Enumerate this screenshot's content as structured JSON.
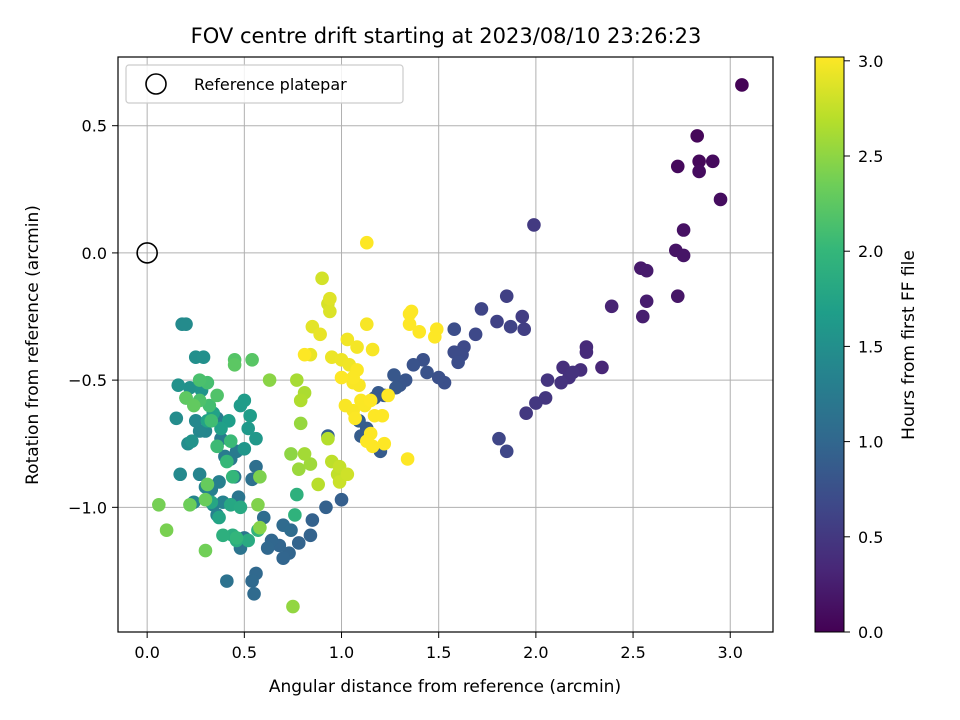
{
  "chart_data": {
    "type": "scatter",
    "title": "FOV centre drift starting at 2023/08/10 23:26:23",
    "xlabel": "Angular distance from reference (arcmin)",
    "ylabel": "Rotation from reference (arcmin)",
    "xlim": [
      -0.15,
      3.22
    ],
    "ylim": [
      -1.49,
      0.77
    ],
    "xticks": [
      0.0,
      0.5,
      1.0,
      1.5,
      2.0,
      2.5,
      3.0
    ],
    "xtick_labels": [
      "0.0",
      "0.5",
      "1.0",
      "1.5",
      "2.0",
      "2.5",
      "3.0"
    ],
    "yticks": [
      0.5,
      0.0,
      -0.5,
      -1.0
    ],
    "ytick_labels": [
      "0.5",
      "0.0",
      "−0.5",
      "−1.0"
    ],
    "grid": true,
    "legend": {
      "location": "upper-left",
      "entries": [
        "Reference platepar"
      ]
    },
    "reference_point": {
      "x": 0.0,
      "y": 0.0,
      "marker": "open-circle"
    },
    "colorbar": {
      "label": "Hours from first FF file",
      "range": [
        0.0,
        3.02
      ],
      "ticks": [
        0.0,
        0.5,
        1.0,
        1.5,
        2.0,
        2.5,
        3.0
      ],
      "tick_labels": [
        "0.0",
        "0.5",
        "1.0",
        "1.5",
        "2.0",
        "2.5",
        "3.0"
      ],
      "colormap": "viridis"
    },
    "colormap_stops": [
      "#440154",
      "#482878",
      "#3e4989",
      "#31688e",
      "#26828e",
      "#1f9e89",
      "#35b779",
      "#6ece58",
      "#b5de2b",
      "#fde725"
    ],
    "points": [
      [
        3.06,
        0.66,
        0.02
      ],
      [
        2.83,
        0.46,
        0.05
      ],
      [
        2.73,
        0.34,
        0.07
      ],
      [
        2.84,
        0.36,
        0.06
      ],
      [
        2.91,
        0.36,
        0.08
      ],
      [
        2.84,
        0.32,
        0.09
      ],
      [
        2.95,
        0.21,
        0.1
      ],
      [
        2.76,
        0.09,
        0.14
      ],
      [
        2.72,
        0.01,
        0.16
      ],
      [
        2.76,
        -0.01,
        0.17
      ],
      [
        2.73,
        -0.17,
        0.18
      ],
      [
        2.54,
        -0.06,
        0.21
      ],
      [
        2.57,
        -0.07,
        0.22
      ],
      [
        2.57,
        -0.19,
        0.24
      ],
      [
        2.55,
        -0.25,
        0.25
      ],
      [
        2.39,
        -0.21,
        0.3
      ],
      [
        2.34,
        -0.45,
        0.33
      ],
      [
        2.26,
        -0.37,
        0.36
      ],
      [
        2.26,
        -0.39,
        0.37
      ],
      [
        2.23,
        -0.46,
        0.4
      ],
      [
        2.14,
        -0.45,
        0.41
      ],
      [
        2.17,
        -0.49,
        0.43
      ],
      [
        2.19,
        -0.47,
        0.44
      ],
      [
        2.13,
        -0.51,
        0.45
      ],
      [
        2.06,
        -0.5,
        0.47
      ],
      [
        2.05,
        -0.57,
        0.48
      ],
      [
        2.0,
        -0.59,
        0.49
      ],
      [
        1.95,
        -0.63,
        0.5
      ],
      [
        1.99,
        0.11,
        0.52
      ],
      [
        1.93,
        -0.25,
        0.55
      ],
      [
        1.94,
        -0.3,
        0.56
      ],
      [
        1.85,
        -0.17,
        0.58
      ],
      [
        1.8,
        -0.27,
        0.6
      ],
      [
        1.87,
        -0.29,
        0.61
      ],
      [
        1.72,
        -0.22,
        0.63
      ],
      [
        1.81,
        -0.73,
        0.64
      ],
      [
        1.85,
        -0.78,
        0.65
      ],
      [
        1.69,
        -0.32,
        0.67
      ],
      [
        1.63,
        -0.37,
        0.68
      ],
      [
        1.62,
        -0.4,
        0.69
      ],
      [
        1.58,
        -0.39,
        0.7
      ],
      [
        1.6,
        -0.43,
        0.71
      ],
      [
        1.58,
        -0.3,
        0.72
      ],
      [
        1.53,
        -0.51,
        0.74
      ],
      [
        1.5,
        -0.49,
        0.75
      ],
      [
        1.42,
        -0.42,
        0.76
      ],
      [
        1.44,
        -0.47,
        0.77
      ],
      [
        1.37,
        -0.44,
        0.78
      ],
      [
        1.33,
        -0.5,
        0.8
      ],
      [
        1.3,
        -0.52,
        0.81
      ],
      [
        1.27,
        -0.48,
        0.82
      ],
      [
        1.28,
        -0.53,
        0.83
      ],
      [
        1.22,
        -0.56,
        0.84
      ],
      [
        1.19,
        -0.55,
        0.85
      ],
      [
        1.17,
        -0.57,
        0.86
      ],
      [
        1.2,
        -0.78,
        0.87
      ],
      [
        1.13,
        -0.69,
        0.88
      ],
      [
        1.1,
        -0.72,
        0.89
      ],
      [
        1.09,
        -0.66,
        0.9
      ],
      [
        1.0,
        -0.97,
        0.91
      ],
      [
        0.93,
        -0.72,
        0.92
      ],
      [
        0.92,
        -1.0,
        0.93
      ],
      [
        0.85,
        -1.05,
        0.94
      ],
      [
        0.84,
        -1.11,
        0.95
      ],
      [
        0.78,
        -1.14,
        0.96
      ],
      [
        0.73,
        -1.18,
        0.97
      ],
      [
        0.7,
        -1.2,
        0.98
      ],
      [
        0.68,
        -1.15,
        0.99
      ],
      [
        0.64,
        -1.13,
        1.0
      ],
      [
        0.62,
        -1.16,
        1.01
      ],
      [
        0.56,
        -1.26,
        1.02
      ],
      [
        0.54,
        -1.29,
        1.03
      ],
      [
        0.55,
        -1.34,
        1.04
      ],
      [
        0.7,
        -1.07,
        1.05
      ],
      [
        0.74,
        -1.09,
        1.06
      ],
      [
        0.6,
        -1.04,
        1.07
      ],
      [
        0.56,
        -0.84,
        1.1
      ],
      [
        0.54,
        -0.89,
        1.12
      ],
      [
        0.41,
        -1.29,
        1.14
      ],
      [
        0.48,
        -1.16,
        1.16
      ],
      [
        0.5,
        -1.12,
        1.17
      ],
      [
        0.47,
        -0.96,
        1.18
      ],
      [
        0.45,
        -0.88,
        1.2
      ],
      [
        0.43,
        -0.81,
        1.22
      ],
      [
        0.46,
        -0.78,
        1.24
      ],
      [
        0.4,
        -0.8,
        1.25
      ],
      [
        0.38,
        -0.73,
        1.27
      ],
      [
        0.36,
        -0.65,
        1.28
      ],
      [
        0.37,
        -0.9,
        1.3
      ],
      [
        0.33,
        -0.93,
        1.31
      ],
      [
        0.34,
        -0.99,
        1.32
      ],
      [
        0.36,
        -1.03,
        1.33
      ],
      [
        0.39,
        -0.98,
        1.34
      ],
      [
        0.3,
        -0.92,
        1.35
      ],
      [
        0.27,
        -0.87,
        1.37
      ],
      [
        0.24,
        -0.98,
        1.38
      ],
      [
        0.3,
        -0.7,
        1.39
      ],
      [
        0.27,
        -0.7,
        1.4
      ],
      [
        0.25,
        -0.66,
        1.41
      ],
      [
        0.17,
        -0.87,
        1.43
      ],
      [
        0.18,
        -0.28,
        1.44
      ],
      [
        0.2,
        -0.28,
        1.45
      ],
      [
        0.15,
        -0.65,
        1.46
      ],
      [
        0.21,
        -0.75,
        1.47
      ],
      [
        0.2,
        -0.57,
        1.48
      ],
      [
        0.25,
        -0.41,
        1.5
      ],
      [
        0.29,
        -0.41,
        1.51
      ],
      [
        0.22,
        -0.53,
        1.52
      ],
      [
        0.16,
        -0.52,
        1.53
      ],
      [
        0.23,
        -0.74,
        1.55
      ],
      [
        0.28,
        -0.54,
        1.56
      ],
      [
        0.5,
        -0.77,
        1.58
      ],
      [
        0.56,
        -0.73,
        1.6
      ],
      [
        0.52,
        -0.69,
        1.62
      ],
      [
        0.48,
        -0.6,
        1.64
      ],
      [
        0.5,
        -0.58,
        1.65
      ],
      [
        0.53,
        -0.64,
        1.66
      ],
      [
        0.42,
        -0.66,
        1.68
      ],
      [
        0.38,
        -0.69,
        1.7
      ],
      [
        0.34,
        -0.63,
        1.72
      ],
      [
        0.31,
        -0.66,
        1.74
      ],
      [
        0.37,
        -1.04,
        1.76
      ],
      [
        0.33,
        -0.98,
        1.78
      ],
      [
        0.43,
        -0.99,
        1.8
      ],
      [
        0.48,
        -1.0,
        1.82
      ],
      [
        0.52,
        -1.13,
        1.84
      ],
      [
        0.46,
        -1.13,
        1.86
      ],
      [
        0.44,
        -1.11,
        1.88
      ],
      [
        0.39,
        -1.11,
        1.9
      ],
      [
        0.77,
        -0.95,
        1.92
      ],
      [
        0.76,
        -1.03,
        1.94
      ],
      [
        0.57,
        -1.09,
        1.96
      ],
      [
        0.46,
        -1.12,
        1.98
      ],
      [
        0.44,
        -0.88,
        2.0
      ],
      [
        0.41,
        -0.82,
        2.02
      ],
      [
        0.43,
        -0.74,
        2.04
      ],
      [
        0.36,
        -0.76,
        2.06
      ],
      [
        0.33,
        -0.66,
        2.08
      ],
      [
        0.32,
        -0.6,
        2.1
      ],
      [
        0.31,
        -0.51,
        2.12
      ],
      [
        0.27,
        -0.5,
        2.14
      ],
      [
        0.27,
        -0.58,
        2.16
      ],
      [
        0.36,
        -0.56,
        2.18
      ],
      [
        0.45,
        -0.42,
        2.2
      ],
      [
        0.54,
        -0.42,
        2.22
      ],
      [
        0.45,
        -0.44,
        2.24
      ],
      [
        0.2,
        -0.57,
        2.26
      ],
      [
        0.24,
        -0.6,
        2.28
      ],
      [
        0.31,
        -0.91,
        2.3
      ],
      [
        0.3,
        -0.97,
        2.32
      ],
      [
        0.22,
        -0.99,
        2.34
      ],
      [
        0.3,
        -1.17,
        2.36
      ],
      [
        0.06,
        -0.99,
        2.38
      ],
      [
        0.1,
        -1.09,
        2.4
      ],
      [
        0.58,
        -0.88,
        2.42
      ],
      [
        0.57,
        -0.99,
        2.44
      ],
      [
        0.58,
        -1.08,
        2.46
      ],
      [
        0.63,
        -0.5,
        2.48
      ],
      [
        0.74,
        -0.79,
        2.5
      ],
      [
        0.75,
        -1.39,
        2.52
      ],
      [
        0.79,
        -0.67,
        2.54
      ],
      [
        0.78,
        -0.85,
        2.56
      ],
      [
        0.84,
        -0.83,
        2.58
      ],
      [
        0.81,
        -0.79,
        2.6
      ],
      [
        0.77,
        -0.5,
        2.62
      ],
      [
        0.81,
        -0.55,
        2.64
      ],
      [
        0.79,
        -0.58,
        2.66
      ],
      [
        0.93,
        -0.73,
        2.68
      ],
      [
        0.88,
        -0.91,
        2.7
      ],
      [
        0.95,
        -0.82,
        2.72
      ],
      [
        0.98,
        -0.87,
        2.74
      ],
      [
        0.99,
        -0.84,
        2.76
      ],
      [
        0.99,
        -0.9,
        2.78
      ],
      [
        1.03,
        -0.87,
        2.8
      ],
      [
        0.9,
        -0.1,
        2.82
      ],
      [
        0.93,
        -0.2,
        2.84
      ],
      [
        0.94,
        -0.23,
        2.86
      ],
      [
        0.94,
        -0.18,
        2.88
      ],
      [
        0.85,
        -0.29,
        2.9
      ],
      [
        0.89,
        -0.32,
        2.92
      ],
      [
        0.84,
        -0.4,
        2.93
      ],
      [
        0.95,
        -0.41,
        2.94
      ],
      [
        1.0,
        -0.42,
        2.95
      ],
      [
        1.04,
        -0.44,
        2.96
      ],
      [
        1.03,
        -0.34,
        2.97
      ],
      [
        1.08,
        -0.37,
        2.98
      ],
      [
        1.13,
        -0.28,
        2.99
      ],
      [
        1.16,
        -0.38,
        2.99
      ],
      [
        1.06,
        -0.51,
        3.0
      ],
      [
        1.09,
        -0.52,
        3.0
      ],
      [
        1.02,
        -0.6,
        3.0
      ],
      [
        1.06,
        -0.62,
        3.0
      ],
      [
        1.07,
        -0.65,
        3.01
      ],
      [
        1.12,
        -0.6,
        3.01
      ],
      [
        1.1,
        -0.58,
        3.01
      ],
      [
        1.08,
        -0.46,
        3.01
      ],
      [
        1.06,
        -0.49,
        3.01
      ],
      [
        1.0,
        -0.49,
        3.02
      ],
      [
        1.15,
        -0.58,
        3.02
      ],
      [
        1.17,
        -0.64,
        3.02
      ],
      [
        1.15,
        -0.71,
        3.02
      ],
      [
        1.13,
        -0.74,
        3.02
      ],
      [
        1.16,
        -0.76,
        3.02
      ],
      [
        1.22,
        -0.75,
        3.02
      ],
      [
        1.21,
        -0.64,
        3.02
      ],
      [
        1.24,
        -0.56,
        3.02
      ],
      [
        1.34,
        -0.81,
        3.02
      ],
      [
        1.13,
        0.04,
        3.02
      ],
      [
        1.35,
        -0.24,
        3.02
      ],
      [
        1.35,
        -0.28,
        3.02
      ],
      [
        1.36,
        -0.23,
        3.02
      ],
      [
        1.4,
        -0.31,
        3.02
      ],
      [
        1.48,
        -0.33,
        3.02
      ],
      [
        1.49,
        -0.3,
        3.02
      ],
      [
        0.81,
        -0.4,
        3.02
      ]
    ]
  }
}
